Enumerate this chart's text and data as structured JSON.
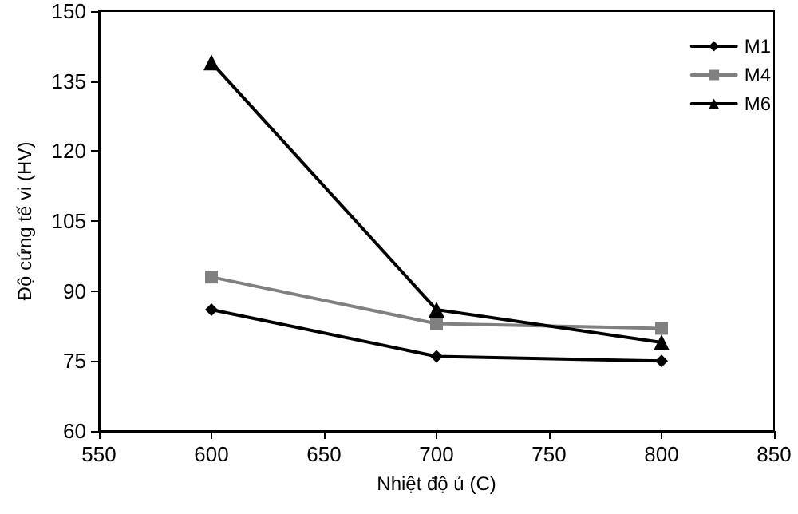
{
  "chart_data": {
    "type": "line",
    "xlabel": "Nhiệt độ ủ (C)",
    "ylabel": "Độ cứng tế vi (HV)",
    "x": [
      600,
      700,
      800
    ],
    "series": [
      {
        "name": "M1",
        "color": "#000000",
        "marker": "diamond",
        "values": [
          86,
          76,
          75
        ]
      },
      {
        "name": "M4",
        "color": "#808080",
        "marker": "square",
        "values": [
          93,
          83,
          82
        ]
      },
      {
        "name": "M6",
        "color": "#000000",
        "marker": "triangle",
        "values": [
          139,
          86,
          79
        ]
      }
    ],
    "xlim": [
      550,
      850
    ],
    "xticks": [
      550,
      600,
      650,
      700,
      750,
      800,
      850
    ],
    "ylim": [
      60,
      150
    ],
    "yticks": [
      60,
      75,
      90,
      105,
      120,
      135,
      150
    ],
    "grid": false,
    "legend": "top right",
    "line_style": "solid"
  }
}
